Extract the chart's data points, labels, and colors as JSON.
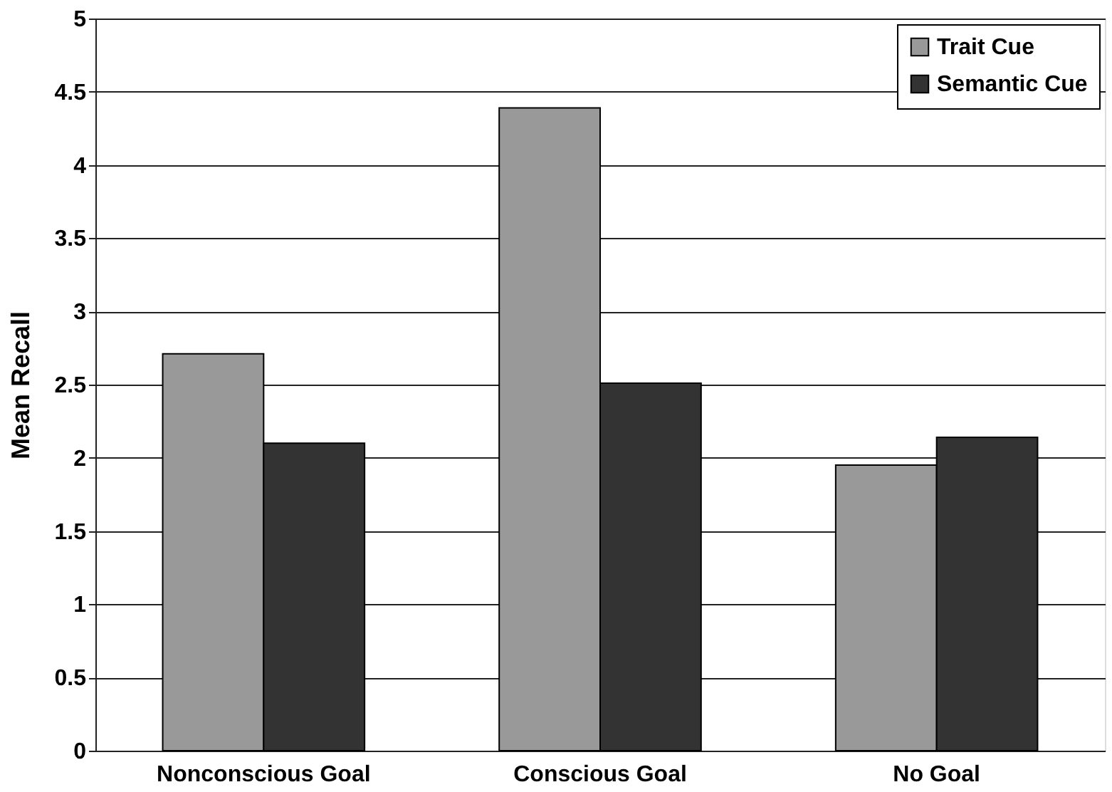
{
  "chart_data": {
    "type": "bar",
    "ylabel": "Mean Recall",
    "categories": [
      "Nonconscious Goal",
      "Conscious Goal",
      "No Goal"
    ],
    "series": [
      {
        "name": "Trait Cue",
        "color": "#999999",
        "values": [
          2.71,
          4.39,
          1.95
        ]
      },
      {
        "name": "Semantic Cue",
        "color": "#333333",
        "values": [
          2.1,
          2.51,
          2.14
        ]
      }
    ],
    "ylim": [
      0,
      5
    ],
    "yticks": [
      0,
      0.5,
      1,
      1.5,
      2,
      2.5,
      3,
      3.5,
      4,
      4.5,
      5
    ],
    "grid": "y",
    "legend": "top right"
  }
}
